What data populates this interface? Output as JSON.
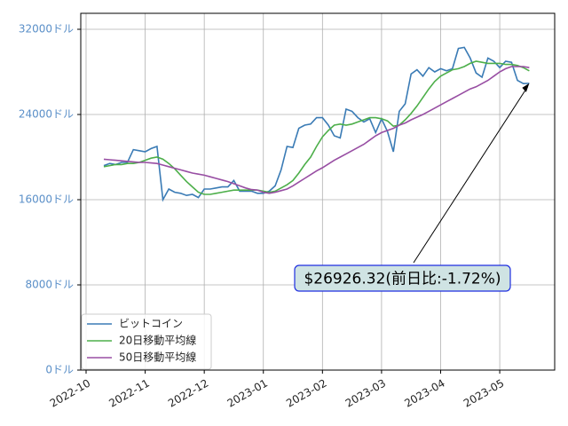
{
  "chart_data": {
    "type": "line",
    "x": [
      0.3,
      0.4,
      0.5,
      0.6,
      0.7,
      0.8,
      0.9,
      1.0,
      1.1,
      1.2,
      1.3,
      1.4,
      1.5,
      1.6,
      1.7,
      1.8,
      1.9,
      2.0,
      2.1,
      2.2,
      2.3,
      2.4,
      2.5,
      2.6,
      2.7,
      2.8,
      2.9,
      3.0,
      3.1,
      3.2,
      3.3,
      3.4,
      3.5,
      3.6,
      3.7,
      3.8,
      3.9,
      4.0,
      4.1,
      4.2,
      4.3,
      4.4,
      4.5,
      4.6,
      4.7,
      4.8,
      4.9,
      5.0,
      5.1,
      5.2,
      5.3,
      5.4,
      5.5,
      5.6,
      5.7,
      5.8,
      5.9,
      6.0,
      6.1,
      6.2,
      6.3,
      6.4,
      6.5,
      6.6,
      6.7,
      6.8,
      6.9,
      7.0,
      7.1,
      7.2,
      7.3,
      7.4,
      7.5
    ],
    "series": [
      {
        "name": "ビットコイン",
        "color": "#3a7bb5",
        "values": [
          19200,
          19400,
          19300,
          19500,
          19500,
          20700,
          20600,
          20500,
          20800,
          21000,
          16000,
          17000,
          16700,
          16600,
          16400,
          16500,
          16200,
          17000,
          17000,
          17100,
          17200,
          17200,
          17800,
          16800,
          16800,
          16800,
          16600,
          16600,
          16800,
          17300,
          18800,
          21000,
          20900,
          22700,
          23000,
          23100,
          23700,
          23700,
          23000,
          22000,
          21800,
          24500,
          24300,
          23700,
          23300,
          23600,
          22300,
          23600,
          22400,
          20500,
          24300,
          25000,
          27800,
          28200,
          27600,
          28400,
          28000,
          28300,
          28100,
          28300,
          30200,
          30300,
          29300,
          27900,
          27500,
          29300,
          29000,
          28400,
          29000,
          28900,
          27200,
          26900,
          26926.32
        ]
      },
      {
        "name": "20日移動平均線",
        "color": "#4daf4a",
        "values": [
          19100,
          19200,
          19300,
          19300,
          19400,
          19400,
          19500,
          19700,
          19900,
          20000,
          19800,
          19400,
          18900,
          18300,
          17700,
          17200,
          16700,
          16500,
          16500,
          16600,
          16700,
          16800,
          16900,
          16900,
          16900,
          16900,
          16900,
          16800,
          16700,
          16800,
          17100,
          17400,
          17800,
          18500,
          19300,
          20000,
          21000,
          21900,
          22500,
          23000,
          23100,
          23000,
          23100,
          23300,
          23500,
          23700,
          23700,
          23600,
          23400,
          22900,
          23000,
          23500,
          24100,
          24800,
          25600,
          26400,
          27100,
          27600,
          27900,
          28200,
          28300,
          28500,
          28800,
          29000,
          28900,
          28800,
          28800,
          28800,
          28700,
          28700,
          28600,
          28400,
          28100
        ]
      },
      {
        "name": "50日移動平均線",
        "color": "#984ea3",
        "values": [
          19800,
          19750,
          19700,
          19650,
          19600,
          19550,
          19500,
          19500,
          19450,
          19400,
          19250,
          19100,
          18950,
          18800,
          18650,
          18500,
          18400,
          18300,
          18150,
          18000,
          17850,
          17700,
          17500,
          17300,
          17100,
          16950,
          16900,
          16700,
          16600,
          16700,
          16850,
          17000,
          17300,
          17650,
          18000,
          18350,
          18700,
          19000,
          19350,
          19700,
          20000,
          20300,
          20600,
          20900,
          21200,
          21600,
          22000,
          22300,
          22500,
          22700,
          23000,
          23200,
          23500,
          23750,
          24000,
          24300,
          24600,
          24900,
          25200,
          25500,
          25800,
          26100,
          26400,
          26600,
          26900,
          27200,
          27600,
          28000,
          28300,
          28500,
          28500,
          28500,
          28400
        ]
      }
    ],
    "xlim": [
      -0.09,
      7.93
    ],
    "xticks": [
      {
        "value": 0,
        "label": "2022-10"
      },
      {
        "value": 1,
        "label": "2022-11"
      },
      {
        "value": 2,
        "label": "2022-12"
      },
      {
        "value": 3,
        "label": "2023-01"
      },
      {
        "value": 4,
        "label": "2023-02"
      },
      {
        "value": 5,
        "label": "2023-03"
      },
      {
        "value": 6,
        "label": "2023-04"
      },
      {
        "value": 7,
        "label": "2023-05"
      }
    ],
    "ylim": [
      0,
      33500
    ],
    "yticks": [
      {
        "value": 0,
        "label": "0ドル"
      },
      {
        "value": 8000,
        "label": "8000ドル"
      },
      {
        "value": 16000,
        "label": "16000ドル"
      },
      {
        "value": 24000,
        "label": "24000ドル"
      },
      {
        "value": 32000,
        "label": "32000ドル"
      }
    ],
    "grid": true,
    "legend": "lower left",
    "annotation": "$26926.32(前日比:-1.72%)"
  }
}
